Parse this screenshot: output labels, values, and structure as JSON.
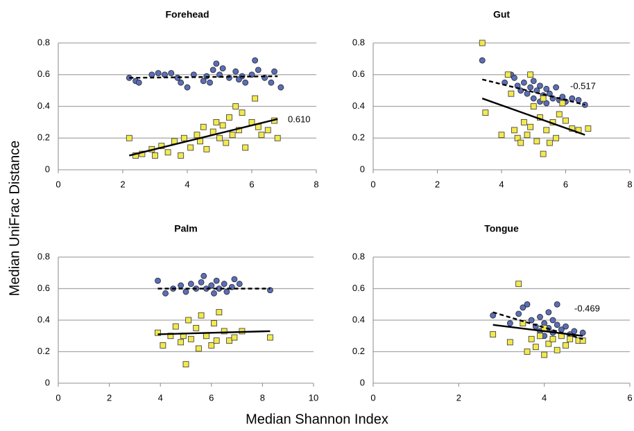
{
  "axis_labels": {
    "y": "Median UniFrac Distance",
    "x": "Median Shannon Index"
  },
  "chart_data": [
    {
      "type": "scatter",
      "title": "Forehead",
      "xlim": [
        0,
        8
      ],
      "xticks": [
        0,
        2,
        4,
        6,
        8
      ],
      "ylim": [
        0,
        0.8
      ],
      "yticks": [
        0,
        0.2,
        0.4,
        0.6,
        0.8
      ],
      "grid": true,
      "series": [
        {
          "color": "#5b6eb8",
          "marker": "circle",
          "x": [
            2.2,
            2.4,
            2.5,
            2.9,
            3.1,
            3.3,
            3.5,
            3.7,
            3.8,
            4.0,
            4.2,
            4.5,
            4.6,
            4.7,
            4.8,
            4.9,
            5.0,
            5.1,
            5.3,
            5.5,
            5.6,
            5.7,
            5.8,
            6.0,
            6.1,
            6.2,
            6.4,
            6.6,
            6.7,
            6.9
          ],
          "values": [
            0.58,
            0.56,
            0.55,
            0.6,
            0.61,
            0.6,
            0.61,
            0.58,
            0.55,
            0.52,
            0.6,
            0.56,
            0.59,
            0.55,
            0.63,
            0.67,
            0.6,
            0.64,
            0.58,
            0.62,
            0.57,
            0.59,
            0.55,
            0.6,
            0.69,
            0.63,
            0.58,
            0.55,
            0.62,
            0.52
          ],
          "trend": {
            "dashed": true,
            "x": [
              2.2,
              6.8
            ],
            "values": [
              0.58,
              0.59
            ]
          }
        },
        {
          "color": "#f2e94e",
          "marker": "square",
          "x": [
            2.2,
            2.4,
            2.6,
            2.9,
            3.0,
            3.2,
            3.4,
            3.6,
            3.8,
            3.9,
            4.1,
            4.3,
            4.4,
            4.5,
            4.6,
            4.8,
            4.9,
            5.0,
            5.1,
            5.2,
            5.3,
            5.4,
            5.5,
            5.6,
            5.7,
            5.8,
            6.0,
            6.1,
            6.2,
            6.3,
            6.5,
            6.7,
            6.8
          ],
          "values": [
            0.2,
            0.09,
            0.1,
            0.13,
            0.09,
            0.15,
            0.11,
            0.18,
            0.09,
            0.2,
            0.14,
            0.22,
            0.18,
            0.27,
            0.13,
            0.24,
            0.3,
            0.2,
            0.28,
            0.17,
            0.33,
            0.22,
            0.4,
            0.25,
            0.36,
            0.14,
            0.3,
            0.45,
            0.27,
            0.22,
            0.25,
            0.31,
            0.2
          ],
          "trend": {
            "dashed": false,
            "x": [
              2.2,
              6.8
            ],
            "values": [
              0.09,
              0.32
            ]
          }
        }
      ],
      "annotation": "0.610"
    },
    {
      "type": "scatter",
      "title": "Gut",
      "xlim": [
        0,
        8
      ],
      "xticks": [
        0,
        2,
        4,
        6,
        8
      ],
      "ylim": [
        0,
        0.8
      ],
      "yticks": [
        0,
        0.2,
        0.4,
        0.6,
        0.8
      ],
      "grid": true,
      "series": [
        {
          "color": "#5b6eb8",
          "marker": "circle",
          "x": [
            3.4,
            4.1,
            4.3,
            4.4,
            4.5,
            4.6,
            4.7,
            4.8,
            4.9,
            5.0,
            5.0,
            5.1,
            5.2,
            5.2,
            5.3,
            5.4,
            5.4,
            5.5,
            5.6,
            5.7,
            5.8,
            5.9,
            6.0,
            6.2,
            6.4,
            6.6
          ],
          "values": [
            0.69,
            0.55,
            0.6,
            0.58,
            0.53,
            0.5,
            0.55,
            0.48,
            0.52,
            0.45,
            0.56,
            0.5,
            0.43,
            0.53,
            0.47,
            0.51,
            0.42,
            0.48,
            0.45,
            0.52,
            0.44,
            0.46,
            0.43,
            0.45,
            0.44,
            0.41
          ],
          "trend": {
            "dashed": true,
            "x": [
              3.4,
              6.6
            ],
            "values": [
              0.57,
              0.41
            ]
          }
        },
        {
          "color": "#f2e94e",
          "marker": "square",
          "x": [
            3.4,
            3.5,
            4.0,
            4.2,
            4.3,
            4.4,
            4.5,
            4.6,
            4.7,
            4.8,
            4.9,
            4.9,
            5.0,
            5.1,
            5.2,
            5.3,
            5.3,
            5.4,
            5.5,
            5.6,
            5.7,
            5.8,
            5.9,
            6.0,
            6.2,
            6.4,
            6.7
          ],
          "values": [
            0.8,
            0.36,
            0.22,
            0.6,
            0.48,
            0.25,
            0.2,
            0.17,
            0.3,
            0.22,
            0.6,
            0.27,
            0.4,
            0.18,
            0.33,
            0.1,
            0.45,
            0.25,
            0.17,
            0.3,
            0.2,
            0.35,
            0.42,
            0.31,
            0.26,
            0.25,
            0.26
          ],
          "trend": {
            "dashed": false,
            "x": [
              3.4,
              6.6
            ],
            "values": [
              0.45,
              0.22
            ]
          }
        }
      ],
      "annotation": "-0.517"
    },
    {
      "type": "scatter",
      "title": "Palm",
      "xlim": [
        0,
        10
      ],
      "xticks": [
        0,
        2,
        4,
        6,
        8,
        10
      ],
      "ylim": [
        0,
        0.8
      ],
      "yticks": [
        0,
        0.2,
        0.4,
        0.6,
        0.8
      ],
      "grid": true,
      "series": [
        {
          "color": "#5b6eb8",
          "marker": "circle",
          "x": [
            3.9,
            4.2,
            4.5,
            4.8,
            5.0,
            5.2,
            5.4,
            5.6,
            5.7,
            5.8,
            6.0,
            6.1,
            6.2,
            6.3,
            6.5,
            6.6,
            6.8,
            6.9,
            7.1,
            8.3
          ],
          "values": [
            0.65,
            0.57,
            0.6,
            0.62,
            0.58,
            0.63,
            0.6,
            0.64,
            0.68,
            0.6,
            0.62,
            0.57,
            0.65,
            0.6,
            0.63,
            0.58,
            0.61,
            0.66,
            0.63,
            0.59
          ],
          "trend": {
            "dashed": true,
            "x": [
              3.9,
              8.3
            ],
            "values": [
              0.6,
              0.6
            ]
          }
        },
        {
          "color": "#f2e94e",
          "marker": "square",
          "x": [
            3.9,
            4.1,
            4.4,
            4.6,
            4.8,
            4.9,
            5.0,
            5.1,
            5.2,
            5.4,
            5.5,
            5.6,
            5.8,
            6.0,
            6.1,
            6.2,
            6.3,
            6.5,
            6.7,
            6.9,
            7.2,
            8.3
          ],
          "values": [
            0.32,
            0.24,
            0.3,
            0.36,
            0.26,
            0.3,
            0.12,
            0.4,
            0.28,
            0.35,
            0.22,
            0.43,
            0.3,
            0.24,
            0.38,
            0.27,
            0.45,
            0.33,
            0.27,
            0.29,
            0.33,
            0.29
          ],
          "trend": {
            "dashed": false,
            "x": [
              3.9,
              8.3
            ],
            "values": [
              0.31,
              0.33
            ]
          }
        }
      ]
    },
    {
      "type": "scatter",
      "title": "Tongue",
      "xlim": [
        0,
        6
      ],
      "xticks": [
        0,
        2,
        4,
        6
      ],
      "ylim": [
        0,
        0.8
      ],
      "yticks": [
        0,
        0.2,
        0.4,
        0.6,
        0.8
      ],
      "grid": true,
      "series": [
        {
          "color": "#5b6eb8",
          "marker": "circle",
          "x": [
            2.8,
            3.2,
            3.4,
            3.5,
            3.6,
            3.7,
            3.8,
            3.9,
            3.9,
            4.0,
            4.0,
            4.1,
            4.1,
            4.2,
            4.2,
            4.3,
            4.3,
            4.4,
            4.5,
            4.6,
            4.7,
            4.9
          ],
          "values": [
            0.43,
            0.38,
            0.44,
            0.48,
            0.5,
            0.4,
            0.36,
            0.42,
            0.33,
            0.38,
            0.3,
            0.35,
            0.45,
            0.32,
            0.4,
            0.37,
            0.5,
            0.34,
            0.36,
            0.31,
            0.33,
            0.32
          ],
          "trend": {
            "dashed": true,
            "x": [
              2.8,
              4.9
            ],
            "values": [
              0.45,
              0.28
            ]
          }
        },
        {
          "color": "#f2e94e",
          "marker": "square",
          "x": [
            2.8,
            3.2,
            3.4,
            3.5,
            3.6,
            3.7,
            3.8,
            3.9,
            4.0,
            4.0,
            4.1,
            4.2,
            4.3,
            4.4,
            4.5,
            4.6,
            4.8,
            4.9
          ],
          "values": [
            0.31,
            0.26,
            0.63,
            0.38,
            0.2,
            0.28,
            0.23,
            0.3,
            0.18,
            0.35,
            0.25,
            0.28,
            0.21,
            0.3,
            0.24,
            0.28,
            0.27,
            0.27
          ],
          "trend": {
            "dashed": false,
            "x": [
              2.8,
              4.9
            ],
            "values": [
              0.37,
              0.3
            ]
          }
        }
      ],
      "annotation": "-0.469"
    }
  ]
}
